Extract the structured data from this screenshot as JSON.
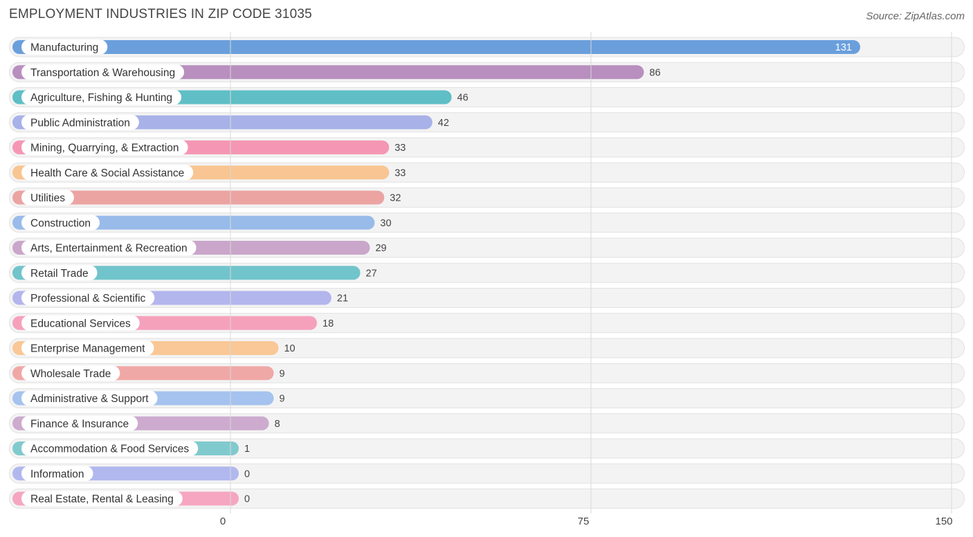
{
  "header": {
    "title": "EMPLOYMENT INDUSTRIES IN ZIP CODE 31035",
    "source": "Source: ZipAtlas.com"
  },
  "chart_data": {
    "type": "bar",
    "orientation": "horizontal",
    "title": "EMPLOYMENT INDUSTRIES IN ZIP CODE 31035",
    "xlabel": "",
    "ylabel": "",
    "xlim": [
      0,
      150
    ],
    "xticks": [
      0,
      75,
      150
    ],
    "grid": true,
    "categories": [
      "Manufacturing",
      "Transportation & Warehousing",
      "Agriculture, Fishing & Hunting",
      "Public Administration",
      "Mining, Quarrying, & Extraction",
      "Health Care & Social Assistance",
      "Utilities",
      "Construction",
      "Arts, Entertainment & Recreation",
      "Retail Trade",
      "Professional & Scientific",
      "Educational Services",
      "Enterprise Management",
      "Wholesale Trade",
      "Administrative & Support",
      "Finance & Insurance",
      "Accommodation & Food Services",
      "Information",
      "Real Estate, Rental & Leasing"
    ],
    "values": [
      131,
      86,
      46,
      42,
      33,
      33,
      32,
      30,
      29,
      27,
      21,
      18,
      10,
      9,
      9,
      8,
      1,
      0,
      0
    ],
    "colors": [
      "#6a9fdc",
      "#b88fbf",
      "#5fbec6",
      "#a8b2e8",
      "#f597b4",
      "#f9c592",
      "#eba4a2",
      "#99bbea",
      "#c9a6ca",
      "#71c4cb",
      "#b2b6ec",
      "#f6a1bc",
      "#f9c896",
      "#f0a8a6",
      "#a5c3ee",
      "#ccabcf",
      "#80cace",
      "#b1b8ee",
      "#f6a6c0"
    ]
  }
}
